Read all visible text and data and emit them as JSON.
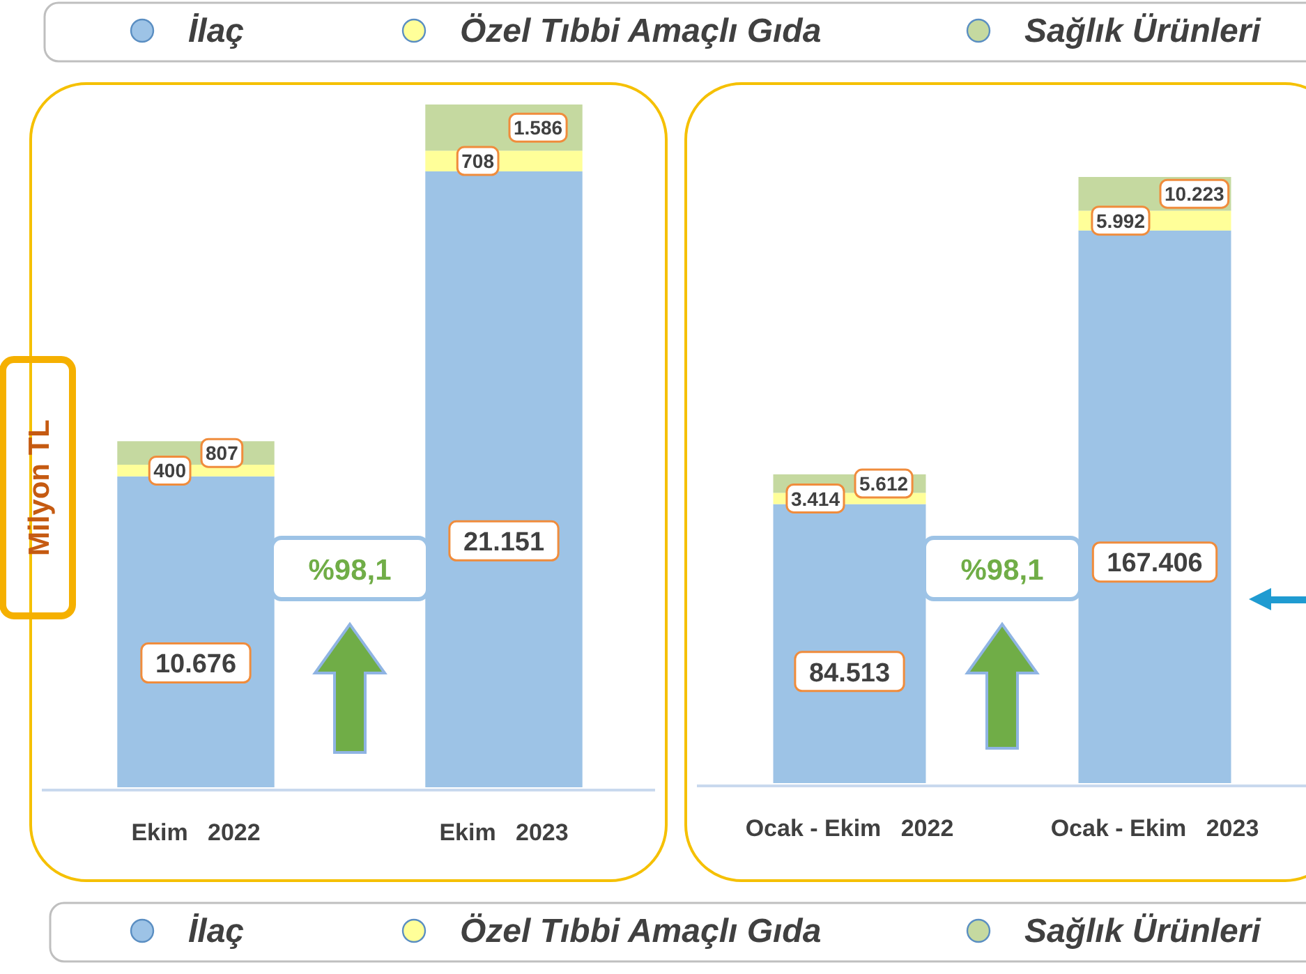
{
  "chart_data": [
    {
      "type": "bar",
      "stacked": true,
      "ylabel": "Milyon TL",
      "legend": "top",
      "categories": [
        "Ekim   2022",
        "Ekim   2023"
      ],
      "annotations": [
        "%98,1"
      ],
      "series": [
        {
          "name": "İlaç",
          "color": "#9dc3e6",
          "values": [
            10676,
            21151
          ],
          "value_labels": [
            "10.676",
            "21.151"
          ]
        },
        {
          "name": "Özel Tıbbi Amaçlı Gıda",
          "color": "#ffff99",
          "values": [
            400,
            708
          ],
          "value_labels": [
            "400",
            "708"
          ]
        },
        {
          "name": "Sağlık Ürünleri",
          "color": "#c5d9a0",
          "values": [
            807,
            1586
          ],
          "value_labels": [
            "807",
            "1.586"
          ]
        }
      ]
    },
    {
      "type": "bar",
      "stacked": true,
      "legend": "bottom",
      "categories": [
        "Ocak - Ekim   2022",
        "Ocak - Ekim   2023"
      ],
      "annotations": [
        "%98,1"
      ],
      "series": [
        {
          "name": "İlaç",
          "color": "#9dc3e6",
          "values": [
            84513,
            167406
          ],
          "value_labels": [
            "84.513",
            "167.406"
          ]
        },
        {
          "name": "Özel Tıbbi Amaçlı Gıda",
          "color": "#ffff99",
          "values": [
            3414,
            5992
          ],
          "value_labels": [
            "3.414",
            "5.992"
          ]
        },
        {
          "name": "Sağlık Ürünleri",
          "color": "#c5d9a0",
          "values": [
            5612,
            10223
          ],
          "value_labels": [
            "5.612",
            "10.223"
          ]
        }
      ]
    }
  ]
}
